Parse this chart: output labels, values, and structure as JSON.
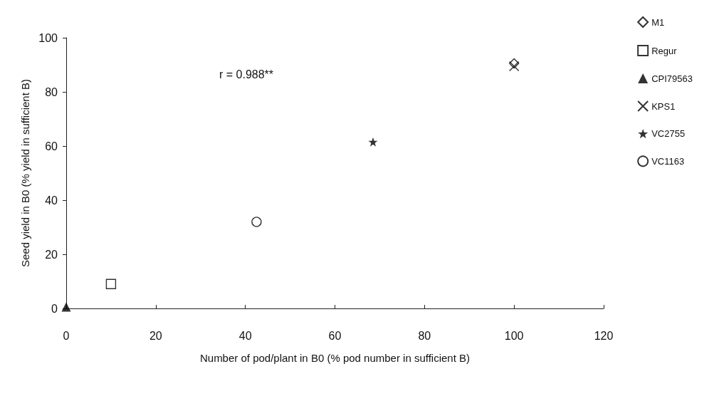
{
  "chart_data": {
    "type": "scatter",
    "xlabel": "Number of pod/plant in B0 (% pod number in sufficient B)",
    "ylabel": "Seed yield in B0 (% yield in sufficient B)",
    "annotations": [
      "r = 0.988**"
    ],
    "xlim": [
      0,
      120
    ],
    "xticks": [
      0,
      20,
      40,
      60,
      80,
      100,
      120
    ],
    "ylim": [
      0,
      100
    ],
    "yticks": [
      0,
      20,
      40,
      60,
      80,
      100
    ],
    "grid": false,
    "legend": "right",
    "series": [
      {
        "name": "M1",
        "color": "#000000",
        "marker": "diamond",
        "x": [
          100
        ],
        "values": [
          90.5
        ]
      },
      {
        "name": "Regur",
        "color": "#000000",
        "marker": "square",
        "x": [
          10
        ],
        "values": [
          9
        ]
      },
      {
        "name": "CPI79563",
        "color": "#000000",
        "marker": "triangle",
        "x": [
          0
        ],
        "values": [
          0.5
        ]
      },
      {
        "name": "KPS1",
        "color": "#000000",
        "marker": "cross",
        "x": [
          100
        ],
        "values": [
          89.5
        ]
      },
      {
        "name": "VC2755",
        "color": "#000000",
        "marker": "star",
        "x": [
          68.5
        ],
        "values": [
          61.5
        ]
      },
      {
        "name": "VC1163",
        "color": "#000000",
        "marker": "circle",
        "x": [
          42.5
        ],
        "values": [
          32
        ]
      }
    ]
  }
}
